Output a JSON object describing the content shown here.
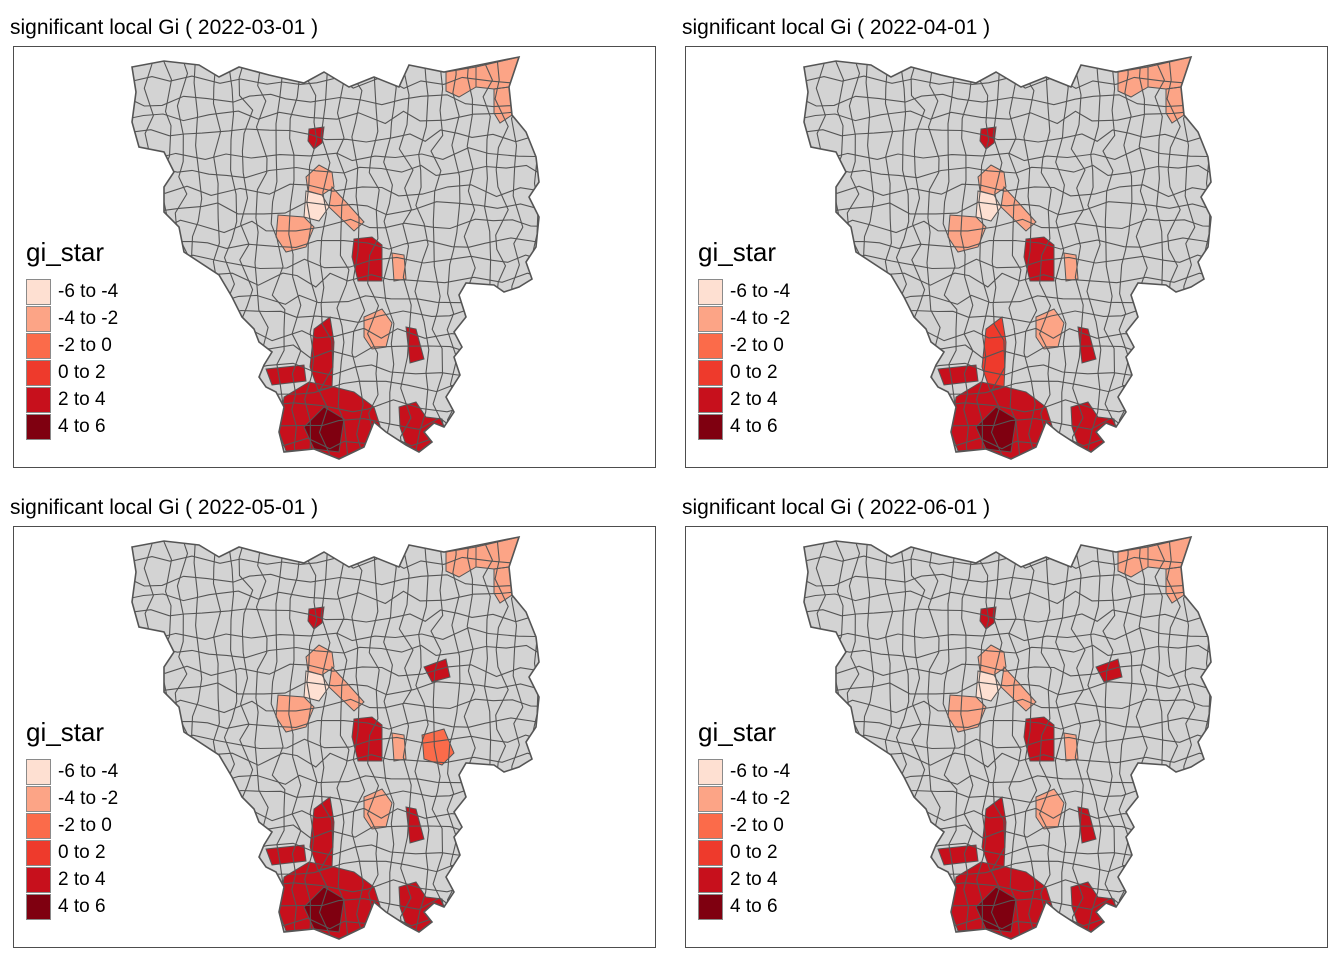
{
  "colors": {
    "no_data": "#d3d3d3",
    "border": "#555555",
    "frame": "#4d4d4d"
  },
  "legend": {
    "title": "gi_star",
    "classes": [
      {
        "label": "-6 to -4",
        "color": "#fee0d2"
      },
      {
        "label": "-4 to -2",
        "color": "#fca486"
      },
      {
        "label": "-2 to 0",
        "color": "#fb6b4a"
      },
      {
        "label": "0 to 2",
        "color": "#ee3a2c"
      },
      {
        "label": "2 to 4",
        "color": "#c7101c"
      },
      {
        "label": "4 to 6",
        "color": "#7f0010"
      }
    ]
  },
  "panels": [
    {
      "title": "significant local Gi ( 2022-03-01 )",
      "highlights": [
        {
          "region": "ne-corner-west",
          "class": 1
        },
        {
          "region": "ne-corner-east",
          "class": 1
        },
        {
          "region": "ne-strip",
          "class": 1
        },
        {
          "region": "central-north-small",
          "class": 4
        },
        {
          "region": "central-cluster-a",
          "class": 1
        },
        {
          "region": "central-cluster-b",
          "class": 0
        },
        {
          "region": "central-cluster-c",
          "class": 1
        },
        {
          "region": "central-cluster-d",
          "class": 1
        },
        {
          "region": "center-block",
          "class": 4
        },
        {
          "region": "center-east-strip",
          "class": 1
        },
        {
          "region": "south-mid",
          "class": 1
        },
        {
          "region": "south-east-block",
          "class": 4
        },
        {
          "region": "south-west-arm",
          "class": 4
        },
        {
          "region": "south-long-strip",
          "class": 4
        },
        {
          "region": "south-cluster",
          "class": 4
        },
        {
          "region": "south-tip",
          "class": 5
        },
        {
          "region": "south-east-tail",
          "class": 4
        }
      ]
    },
    {
      "title": "significant local Gi ( 2022-04-01 )",
      "highlights": [
        {
          "region": "ne-corner-west",
          "class": 1
        },
        {
          "region": "ne-corner-east",
          "class": 1
        },
        {
          "region": "ne-strip",
          "class": 1
        },
        {
          "region": "central-north-small",
          "class": 4
        },
        {
          "region": "central-cluster-a",
          "class": 1
        },
        {
          "region": "central-cluster-b",
          "class": 0
        },
        {
          "region": "central-cluster-c",
          "class": 1
        },
        {
          "region": "central-cluster-d",
          "class": 1
        },
        {
          "region": "center-block",
          "class": 4
        },
        {
          "region": "center-east-strip",
          "class": 1
        },
        {
          "region": "south-mid",
          "class": 1
        },
        {
          "region": "south-east-block",
          "class": 4
        },
        {
          "region": "south-west-arm",
          "class": 4
        },
        {
          "region": "south-long-strip",
          "class": 3
        },
        {
          "region": "south-cluster",
          "class": 4
        },
        {
          "region": "south-tip",
          "class": 5
        },
        {
          "region": "south-east-tail",
          "class": 4
        }
      ]
    },
    {
      "title": "significant local Gi ( 2022-05-01 )",
      "highlights": [
        {
          "region": "ne-corner-west",
          "class": 1
        },
        {
          "region": "ne-corner-east",
          "class": 1
        },
        {
          "region": "ne-strip",
          "class": 1
        },
        {
          "region": "central-north-small",
          "class": 4
        },
        {
          "region": "central-cluster-a",
          "class": 1
        },
        {
          "region": "central-cluster-b",
          "class": 0
        },
        {
          "region": "central-cluster-c",
          "class": 1
        },
        {
          "region": "central-cluster-d",
          "class": 1
        },
        {
          "region": "center-block",
          "class": 4
        },
        {
          "region": "center-east-strip",
          "class": 1
        },
        {
          "region": "east-mid-small",
          "class": 4
        },
        {
          "region": "east-mid-large",
          "class": 2
        },
        {
          "region": "south-mid",
          "class": 1
        },
        {
          "region": "south-east-block",
          "class": 4
        },
        {
          "region": "south-west-arm",
          "class": 4
        },
        {
          "region": "south-long-strip",
          "class": 4
        },
        {
          "region": "south-cluster",
          "class": 4
        },
        {
          "region": "south-tip",
          "class": 5
        },
        {
          "region": "south-east-tail",
          "class": 4
        }
      ]
    },
    {
      "title": "significant local Gi ( 2022-06-01 )",
      "highlights": [
        {
          "region": "ne-corner-west",
          "class": 1
        },
        {
          "region": "ne-corner-east",
          "class": 1
        },
        {
          "region": "ne-strip",
          "class": 1
        },
        {
          "region": "central-north-small",
          "class": 4
        },
        {
          "region": "central-cluster-a",
          "class": 1
        },
        {
          "region": "central-cluster-b",
          "class": 0
        },
        {
          "region": "central-cluster-c",
          "class": 1
        },
        {
          "region": "central-cluster-d",
          "class": 1
        },
        {
          "region": "center-block",
          "class": 4
        },
        {
          "region": "center-east-strip",
          "class": 1
        },
        {
          "region": "east-mid-small",
          "class": 4
        },
        {
          "region": "south-mid",
          "class": 1
        },
        {
          "region": "south-east-block",
          "class": 4
        },
        {
          "region": "south-west-arm",
          "class": 4
        },
        {
          "region": "south-long-strip",
          "class": 4
        },
        {
          "region": "south-cluster",
          "class": 4
        },
        {
          "region": "south-tip",
          "class": 5
        },
        {
          "region": "south-east-tail",
          "class": 4
        }
      ]
    }
  ]
}
